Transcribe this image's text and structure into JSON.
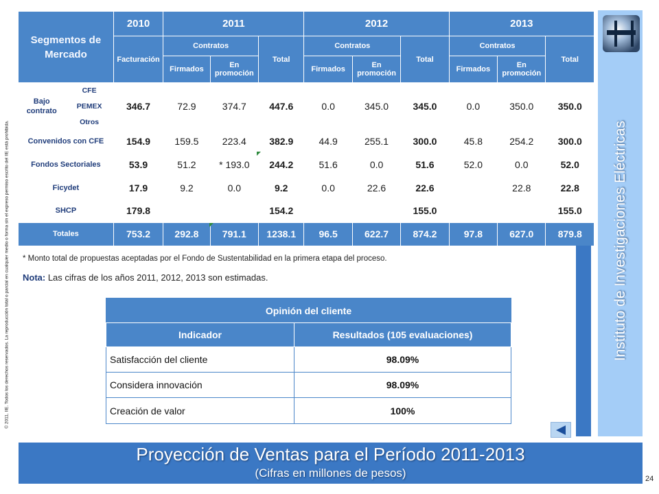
{
  "copyright": "© 2011, IIE. Todos los derechos reservados. La reproducción total o parcial en cualquier medio o forma sin el expreso permiso escrito del IIE está prohibida.",
  "market_table": {
    "segment_header": "Segmentos de Mercado",
    "years": [
      "2010",
      "2011",
      "2012",
      "2013"
    ],
    "facturacion": "Facturación",
    "contratos": "Contratos",
    "total": "Total",
    "firmados": "Firmados",
    "en_promocion": "En promoción",
    "bajo_contrato": {
      "label": "Bajo contrato",
      "subs": [
        "CFE",
        "PEMEX",
        "Otros"
      ],
      "values": [
        "346.7",
        "72.9",
        "374.7",
        "447.6",
        "0.0",
        "345.0",
        "345.0",
        "0.0",
        "350.0",
        "350.0"
      ]
    },
    "rows": [
      {
        "label": "Convenidos con CFE",
        "values": [
          "154.9",
          "159.5",
          "223.4",
          "382.9",
          "44.9",
          "255.1",
          "300.0",
          "45.8",
          "254.2",
          "300.0"
        ]
      },
      {
        "label": "Fondos Sectoriales",
        "values": [
          "53.9",
          "51.2",
          "*  193.0",
          "244.2",
          "51.6",
          "0.0",
          "51.6",
          "52.0",
          "0.0",
          "52.0"
        ]
      },
      {
        "label": "Ficydet",
        "values": [
          "17.9",
          "9.2",
          "0.0",
          "9.2",
          "0.0",
          "22.6",
          "22.6",
          "",
          "22.8",
          "22.8"
        ]
      },
      {
        "label": "SHCP",
        "values": [
          "179.8",
          "",
          "",
          "154.2",
          "",
          "",
          "155.0",
          "",
          "",
          "155.0"
        ]
      }
    ],
    "totals": {
      "label": "Totales",
      "values": [
        "753.2",
        "292.8",
        "791.1",
        "1238.1",
        "96.5",
        "622.7",
        "874.2",
        "97.8",
        "627.0",
        "879.8"
      ]
    }
  },
  "footnote": "* Monto total de propuestas aceptadas por el Fondo de Sustentabilidad en la primera etapa del proceso.",
  "note_label": "Nota:",
  "note_text": " Las cifras de los años 2011, 2012, 2013 son estimadas.",
  "opinion_table": {
    "title": "Opinión del cliente",
    "col_indicator": "Indicador",
    "col_results": "Resultados (105 evaluaciones)",
    "rows": [
      {
        "indicator": "Satisfacción del cliente",
        "result": "98.09%"
      },
      {
        "indicator": "Considera innovación",
        "result": "98.09%"
      },
      {
        "indicator": "Creación de valor",
        "result": "100%"
      }
    ]
  },
  "sidebar_title": "Instituto de Investigaciones Eléctricas",
  "title": "Proyección de Ventas para el Período 2011-2013",
  "subtitle": "(Cifras en millones de pesos)",
  "page_number": "24",
  "colors": {
    "accent": "#4a86c9",
    "banner": "#3b78c4",
    "sidebar": "#a4cdf7",
    "label_text": "#1f3c7a"
  },
  "icons": {
    "back": "left-triangle-icon",
    "logo": "iie-logo-icon"
  }
}
